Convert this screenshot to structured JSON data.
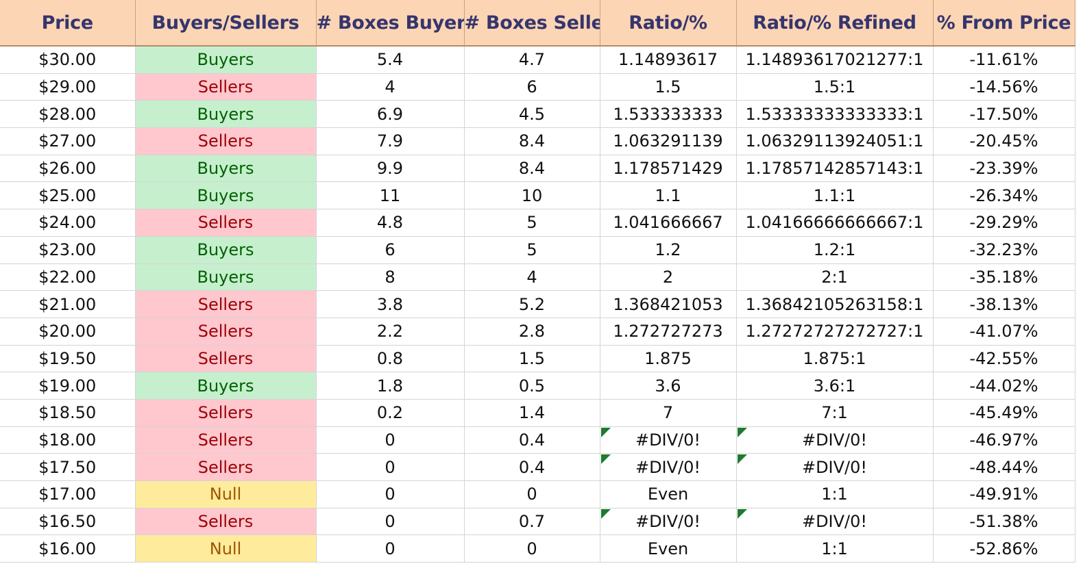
{
  "headers": [
    "Price",
    "Buyers/Sellers",
    "# Boxes Buyers",
    "# Boxes Sellers",
    "Ratio/%",
    "Ratio/% Refined",
    "% From Price"
  ],
  "colors": {
    "header_bg": "#fcd5b4",
    "header_text": "#35356e",
    "buyers_bg": "#c6efce",
    "buyers_text": "#006100",
    "sellers_bg": "#ffc7ce",
    "sellers_text": "#9c0006",
    "null_bg": "#ffeb9c",
    "null_text": "#9c5700",
    "error_flag": "#1e7a30"
  },
  "rows": [
    {
      "price": "$30.00",
      "side": "Buyers",
      "boxes_buyers": "5.4",
      "boxes_sellers": "4.7",
      "ratio": "1.14893617",
      "ratio_refined": "1.14893617021277:1",
      "from_price": "-11.61%"
    },
    {
      "price": "$29.00",
      "side": "Sellers",
      "boxes_buyers": "4",
      "boxes_sellers": "6",
      "ratio": "1.5",
      "ratio_refined": "1.5:1",
      "from_price": "-14.56%"
    },
    {
      "price": "$28.00",
      "side": "Buyers",
      "boxes_buyers": "6.9",
      "boxes_sellers": "4.5",
      "ratio": "1.533333333",
      "ratio_refined": "1.53333333333333:1",
      "from_price": "-17.50%"
    },
    {
      "price": "$27.00",
      "side": "Sellers",
      "boxes_buyers": "7.9",
      "boxes_sellers": "8.4",
      "ratio": "1.063291139",
      "ratio_refined": "1.06329113924051:1",
      "from_price": "-20.45%"
    },
    {
      "price": "$26.00",
      "side": "Buyers",
      "boxes_buyers": "9.9",
      "boxes_sellers": "8.4",
      "ratio": "1.178571429",
      "ratio_refined": "1.17857142857143:1",
      "from_price": "-23.39%"
    },
    {
      "price": "$25.00",
      "side": "Buyers",
      "boxes_buyers": "11",
      "boxes_sellers": "10",
      "ratio": "1.1",
      "ratio_refined": "1.1:1",
      "from_price": "-26.34%"
    },
    {
      "price": "$24.00",
      "side": "Sellers",
      "boxes_buyers": "4.8",
      "boxes_sellers": "5",
      "ratio": "1.041666667",
      "ratio_refined": "1.04166666666667:1",
      "from_price": "-29.29%"
    },
    {
      "price": "$23.00",
      "side": "Buyers",
      "boxes_buyers": "6",
      "boxes_sellers": "5",
      "ratio": "1.2",
      "ratio_refined": "1.2:1",
      "from_price": "-32.23%"
    },
    {
      "price": "$22.00",
      "side": "Buyers",
      "boxes_buyers": "8",
      "boxes_sellers": "4",
      "ratio": "2",
      "ratio_refined": "2:1",
      "from_price": "-35.18%"
    },
    {
      "price": "$21.00",
      "side": "Sellers",
      "boxes_buyers": "3.8",
      "boxes_sellers": "5.2",
      "ratio": "1.368421053",
      "ratio_refined": "1.36842105263158:1",
      "from_price": "-38.13%"
    },
    {
      "price": "$20.00",
      "side": "Sellers",
      "boxes_buyers": "2.2",
      "boxes_sellers": "2.8",
      "ratio": "1.272727273",
      "ratio_refined": "1.27272727272727:1",
      "from_price": "-41.07%"
    },
    {
      "price": "$19.50",
      "side": "Sellers",
      "boxes_buyers": "0.8",
      "boxes_sellers": "1.5",
      "ratio": "1.875",
      "ratio_refined": "1.875:1",
      "from_price": "-42.55%"
    },
    {
      "price": "$19.00",
      "side": "Buyers",
      "boxes_buyers": "1.8",
      "boxes_sellers": "0.5",
      "ratio": "3.6",
      "ratio_refined": "3.6:1",
      "from_price": "-44.02%"
    },
    {
      "price": "$18.50",
      "side": "Sellers",
      "boxes_buyers": "0.2",
      "boxes_sellers": "1.4",
      "ratio": "7",
      "ratio_refined": "7:1",
      "from_price": "-45.49%"
    },
    {
      "price": "$18.00",
      "side": "Sellers",
      "boxes_buyers": "0",
      "boxes_sellers": "0.4",
      "ratio": "#DIV/0!",
      "ratio_refined": "#DIV/0!",
      "from_price": "-46.97%"
    },
    {
      "price": "$17.50",
      "side": "Sellers",
      "boxes_buyers": "0",
      "boxes_sellers": "0.4",
      "ratio": "#DIV/0!",
      "ratio_refined": "#DIV/0!",
      "from_price": "-48.44%"
    },
    {
      "price": "$17.00",
      "side": "Null",
      "boxes_buyers": "0",
      "boxes_sellers": "0",
      "ratio": "Even",
      "ratio_refined": "1:1",
      "from_price": "-49.91%"
    },
    {
      "price": "$16.50",
      "side": "Sellers",
      "boxes_buyers": "0",
      "boxes_sellers": "0.7",
      "ratio": "#DIV/0!",
      "ratio_refined": "#DIV/0!",
      "from_price": "-51.38%"
    },
    {
      "price": "$16.00",
      "side": "Null",
      "boxes_buyers": "0",
      "boxes_sellers": "0",
      "ratio": "Even",
      "ratio_refined": "1:1",
      "from_price": "-52.86%"
    }
  ]
}
